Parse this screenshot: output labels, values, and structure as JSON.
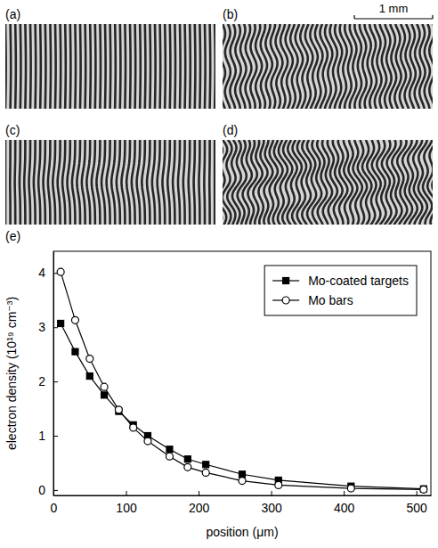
{
  "images": {
    "panel_labels": [
      "(a)",
      "(b)",
      "(c)",
      "(d)"
    ],
    "scale_bar_label": "1 mm"
  },
  "chart_data": {
    "type": "line",
    "panel_label": "(e)",
    "x_label": "position (μm)",
    "y_label": "electron density (10¹⁹ cm⁻³)",
    "x": [
      10,
      30,
      50,
      70,
      90,
      110,
      130,
      160,
      185,
      210,
      260,
      310,
      410,
      510
    ],
    "series": [
      {
        "name": "Mo-coated targets",
        "color": "#000000",
        "marker": "square",
        "values": [
          3.07,
          2.55,
          2.1,
          1.75,
          1.45,
          1.2,
          1.0,
          0.75,
          0.57,
          0.47,
          0.29,
          0.18,
          0.07,
          0.02
        ]
      },
      {
        "name": "Mo bars",
        "color": "#000000",
        "marker": "open-circle",
        "values": [
          4.02,
          3.13,
          2.42,
          1.9,
          1.48,
          1.15,
          0.9,
          0.62,
          0.42,
          0.32,
          0.17,
          0.09,
          0.03,
          0.01
        ]
      }
    ],
    "xlim": [
      0,
      520
    ],
    "xticks": [
      0,
      100,
      200,
      300,
      400,
      500
    ],
    "ylim": [
      -0.1,
      4.4
    ],
    "yticks": [
      0,
      1,
      2,
      3,
      4
    ],
    "legend": "upper right",
    "grid": false
  }
}
